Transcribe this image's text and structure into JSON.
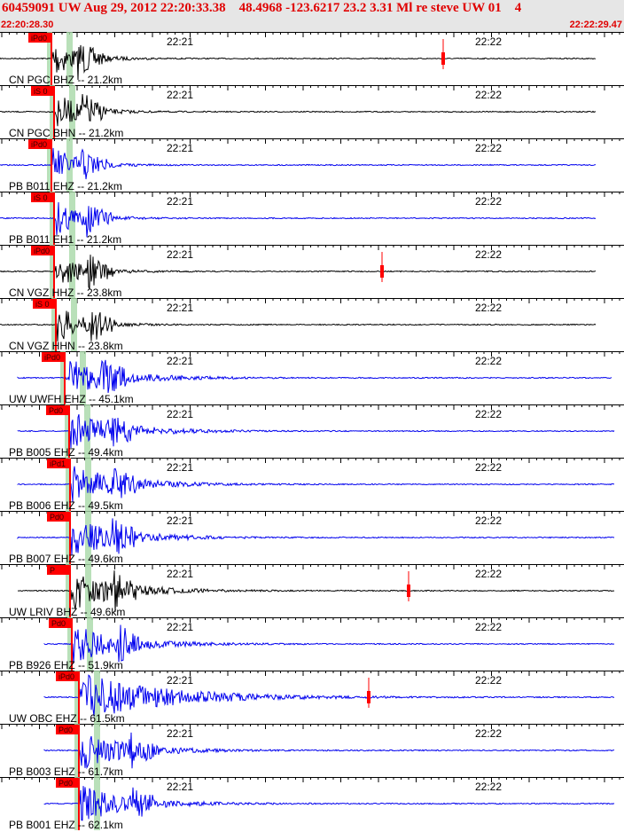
{
  "header": {
    "title": "60459091 UW Aug 29, 2012 22:20:33.38    48.4968 -123.6217 23.2 3.31 Ml re steve UW 01    4",
    "start_time": "22:20:28.30",
    "end_time": "22:22:29.47"
  },
  "tick_labels": [
    "22:21",
    "22:22"
  ],
  "colors": {
    "title": "#e00000",
    "trace_blue": "#0000ee",
    "trace_black": "#000000",
    "pick_box": "#ff0000",
    "pick_band": "#a8d8a8",
    "header_bg": "#e6e6e6"
  },
  "traces": [
    {
      "label": "CN PGC BHZ -- 21.2km",
      "pick": "iPd0",
      "color": "black",
      "end_pick": true
    },
    {
      "label": "CN PGC BHN -- 21.2km",
      "pick": "iS 0",
      "color": "black",
      "end_pick": false
    },
    {
      "label": "PB B011 EHZ -- 21.2km",
      "pick": "iPd0",
      "color": "blue",
      "end_pick": false
    },
    {
      "label": "PB B011 EH1 -- 21.2km",
      "pick": "iS 0",
      "color": "blue",
      "end_pick": false
    },
    {
      "label": "CN VGZ HHZ -- 23.8km",
      "pick": "iPd0",
      "color": "black",
      "end_pick": true
    },
    {
      "label": "CN VGZ HHN -- 23.8km",
      "pick": "iS 0",
      "color": "black",
      "end_pick": false
    },
    {
      "label": "UW UWFH EHZ -- 45.1km",
      "pick": "iPd0",
      "color": "blue",
      "end_pick": false
    },
    {
      "label": "PB B005 EHZ -- 49.4km",
      "pick": "Pd0",
      "color": "blue",
      "end_pick": false
    },
    {
      "label": "PB B006 EHZ -- 49.5km",
      "pick": "iPd1",
      "color": "blue",
      "end_pick": false
    },
    {
      "label": "PB B007 EHZ -- 49.6km",
      "pick": "Pd0",
      "color": "blue",
      "end_pick": false
    },
    {
      "label": "UW LRIV BHZ -- 49.6km",
      "pick": "P",
      "color": "black",
      "end_pick": true
    },
    {
      "label": "PB B926 EHZ -- 51.9km",
      "pick": "Pd0",
      "color": "blue",
      "end_pick": false
    },
    {
      "label": "UW OBC EHZ -- 61.5km",
      "pick": "iPd0",
      "color": "blue",
      "end_pick": true
    },
    {
      "label": "PB B003 EHZ -- 61.7km",
      "pick": "Pd0",
      "color": "blue",
      "end_pick": false
    },
    {
      "label": "PB B001 EHZ -- 62.1km",
      "pick": "Pd0",
      "color": "blue",
      "end_pick": false
    }
  ]
}
